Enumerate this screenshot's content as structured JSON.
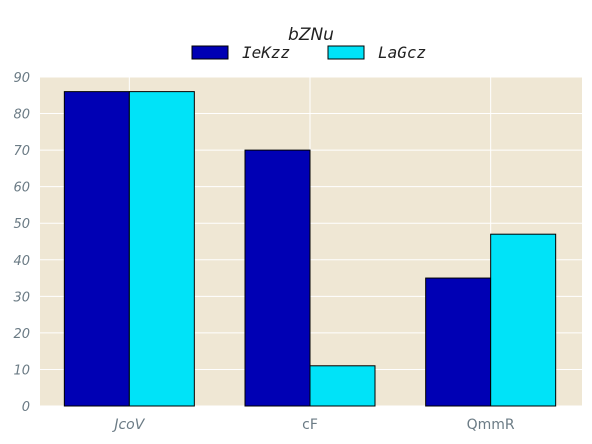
{
  "chart_data": {
    "type": "bar",
    "title": "bZNu",
    "xlabel": "",
    "ylabel": "",
    "categories": [
      "JcoV",
      "cF",
      "QmmR"
    ],
    "category_styles": [
      "italic",
      "normal",
      "normal"
    ],
    "series": [
      {
        "name": "IeKzz",
        "color": "#0000b4",
        "values": [
          86,
          70,
          35
        ]
      },
      {
        "name": "LaGcz",
        "color": "#00e3f8",
        "values": [
          86,
          11,
          47
        ]
      }
    ],
    "ylim": [
      0,
      90
    ],
    "yticks": [
      0,
      10,
      20,
      30,
      40,
      50,
      60,
      70,
      80,
      90
    ],
    "grid": true,
    "legend_position": "top-center",
    "colors": {
      "plot_background": "#efe7d4",
      "grid": "#ffffff",
      "tick_text": "#6b7b85",
      "bar_edge": "#000000"
    }
  }
}
